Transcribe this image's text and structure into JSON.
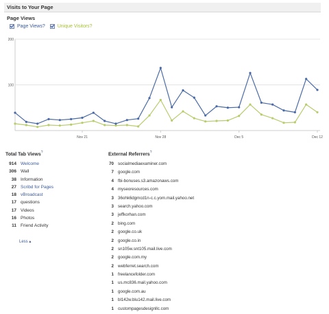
{
  "header": {
    "title": "Visits to Your Page"
  },
  "chart_section": {
    "title": "Page Views",
    "legend": {
      "page_views": "Page Views?",
      "unique_visitors": "Unique Visitors?"
    }
  },
  "colors": {
    "page_views": "#4a6aa5",
    "unique_visitors": "#b7cc6a",
    "link": "#3b5998",
    "header_bg": "#f0f0f0"
  },
  "chart_data": {
    "type": "line",
    "ylim": [
      0,
      200
    ],
    "y_ticks": [
      "200",
      "100"
    ],
    "x_ticks": [
      "Nov 21",
      "Nov 28",
      "Dec 5",
      "Dec 12"
    ],
    "x_tick_index": [
      6,
      13,
      20,
      27
    ],
    "grid": true,
    "series": [
      {
        "name": "Page Views",
        "values": [
          39,
          19,
          15,
          25,
          23,
          25,
          28,
          39,
          21,
          15,
          23,
          26,
          71,
          137,
          51,
          88,
          72,
          33,
          53,
          50,
          51,
          126,
          61,
          57,
          44,
          40,
          113,
          89
        ]
      },
      {
        "name": "Unique Visitors",
        "values": [
          15,
          12,
          8,
          12,
          11,
          13,
          17,
          21,
          12,
          11,
          12,
          9,
          33,
          67,
          22,
          42,
          27,
          20,
          21,
          22,
          32,
          57,
          35,
          27,
          17,
          18,
          57,
          40
        ]
      }
    ]
  },
  "total_tab_views": {
    "title": "Total Tab Views",
    "help": "?",
    "items": [
      {
        "count": "914",
        "label": "Welcome",
        "link": true
      },
      {
        "count": "306",
        "label": "Wall",
        "link": false
      },
      {
        "count": "38",
        "label": "Information",
        "link": false
      },
      {
        "count": "27",
        "label": "Scribd for Pages",
        "link": true
      },
      {
        "count": "18",
        "label": "vBroadcast",
        "link": true
      },
      {
        "count": "17",
        "label": "questions",
        "link": false
      },
      {
        "count": "17",
        "label": "Videos",
        "link": false
      },
      {
        "count": "16",
        "label": "Photos",
        "link": false
      },
      {
        "count": "11",
        "label": "Friend Activity",
        "link": false
      }
    ],
    "less_label": "Less ▴"
  },
  "external_referrers": {
    "title": "External Referrers",
    "help": "?",
    "items": [
      {
        "count": "70",
        "label": "socialmediaexaminer.com"
      },
      {
        "count": "7",
        "label": "google.com"
      },
      {
        "count": "4",
        "label": "fbi-bonuses.s3.amazonaws.com"
      },
      {
        "count": "4",
        "label": "myseoresources.com"
      },
      {
        "count": "3",
        "label": "36ohk6dgmcd1n-c.c.yom.mail.yahoo.net"
      },
      {
        "count": "3",
        "label": "search.yahoo.com"
      },
      {
        "count": "3",
        "label": "jeffkorhan.com"
      },
      {
        "count": "2",
        "label": "bing.com"
      },
      {
        "count": "2",
        "label": "google.co.uk"
      },
      {
        "count": "2",
        "label": "google.co.in"
      },
      {
        "count": "2",
        "label": "sn105w.snt105.mail.live.com"
      },
      {
        "count": "2",
        "label": "google.com.my"
      },
      {
        "count": "2",
        "label": "webferret.search.com"
      },
      {
        "count": "1",
        "label": "freelancefolder.com"
      },
      {
        "count": "1",
        "label": "us.mc836.mail.yahoo.com"
      },
      {
        "count": "1",
        "label": "google.com.au"
      },
      {
        "count": "1",
        "label": "bl142w.blu142.mail.live.com"
      },
      {
        "count": "1",
        "label": "custompagesdesignllc.com"
      }
    ]
  }
}
